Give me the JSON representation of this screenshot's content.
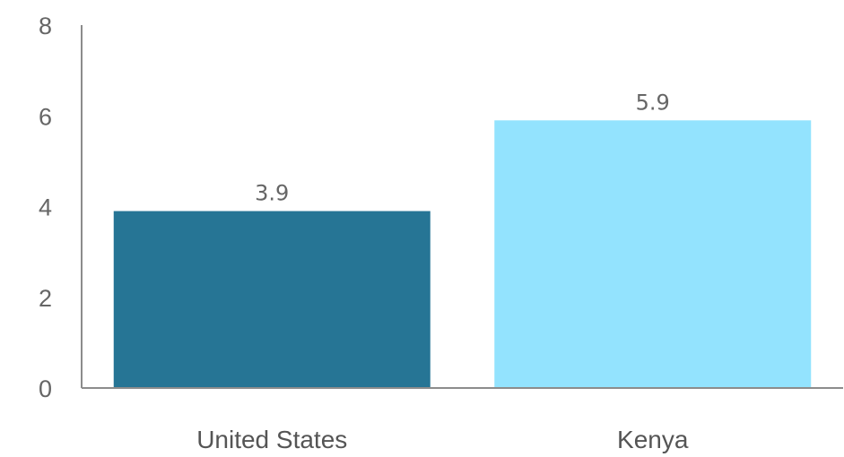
{
  "chart_data": {
    "type": "bar",
    "categories": [
      "United States",
      "Kenya"
    ],
    "values": [
      3.9,
      5.9
    ],
    "value_labels": [
      "3.9",
      "5.9"
    ],
    "colors": [
      "#267595",
      "#93E3FE"
    ],
    "ylim": [
      0,
      8
    ],
    "yticks": [
      0,
      2,
      4,
      6,
      8
    ],
    "ytick_labels": [
      "0",
      "2",
      "4",
      "6",
      "8"
    ],
    "grid": false,
    "title": "",
    "xlabel": "",
    "ylabel": ""
  }
}
